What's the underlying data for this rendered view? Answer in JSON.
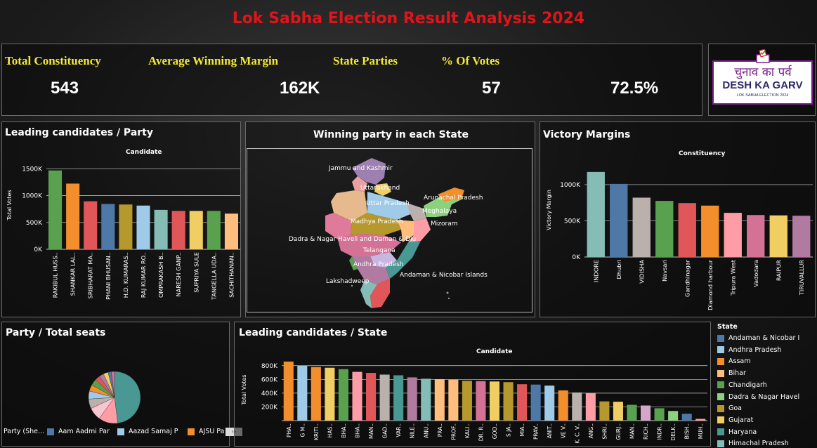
{
  "header": {
    "title": "Lok Sabha Election Result Analysis 2024"
  },
  "kpis": [
    {
      "label": "Total Constituency",
      "value": "543"
    },
    {
      "label": "Average Winning Margin",
      "value": "162K"
    },
    {
      "label": "State Parties",
      "value": "57"
    },
    {
      "label": "% Of Votes",
      "value": "72.5%"
    }
  ],
  "logo": {
    "hindi": "चुनाव का पर्व",
    "main": "DESH KA GARV",
    "sub": "LOK SABHA ELECTION 2024",
    "color": "#7a1e8c"
  },
  "panels": {
    "leading_party": {
      "title": "Leading candidates / Party",
      "subtitle": "Candidate"
    },
    "map": {
      "title": "Winning party in each State"
    },
    "victory": {
      "title": "Victory Margins",
      "subtitle": "Constituency"
    },
    "party_seats": {
      "title": "Party / Total seats"
    },
    "leading_state": {
      "title": "Leading candidates / State",
      "subtitle": "Candidate"
    }
  },
  "map_labels": [
    "Jammu and Kashmir",
    "Uttarakhand",
    "Uttar Pradesh",
    "Arunachal Pradesh",
    "Meghalaya",
    "Madhya Pradesh",
    "Mizoram",
    "Dadra & Nagar Haveli and Daman & Diu",
    "Telangana",
    "Andhra Pradesh",
    "Andaman & Nicobar Islands",
    "Lakshadweep"
  ],
  "pie_legend": {
    "label": "Party (She...",
    "items": [
      {
        "name": "Aam Aadmi Par",
        "color": "#4e79a7"
      },
      {
        "name": "Aazad Samaj P",
        "color": "#a0cbe8"
      },
      {
        "name": "AJSU Pa",
        "color": "#f28e2b"
      }
    ]
  },
  "state_legend": {
    "title": "State",
    "items": [
      {
        "name": "Andaman & Nicobar I",
        "color": "#4e79a7"
      },
      {
        "name": "Andhra Pradesh",
        "color": "#a0cbe8"
      },
      {
        "name": "Assam",
        "color": "#f28e2b"
      },
      {
        "name": "Bihar",
        "color": "#ffbe7d"
      },
      {
        "name": "Chandigarh",
        "color": "#59a14f"
      },
      {
        "name": "Dadra & Nagar Havel",
        "color": "#8cd17d"
      },
      {
        "name": "Goa",
        "color": "#b6992d"
      },
      {
        "name": "Gujarat",
        "color": "#f1ce63"
      },
      {
        "name": "Haryana",
        "color": "#499894"
      },
      {
        "name": "Himachal Pradesh",
        "color": "#86bcb6"
      }
    ]
  },
  "chart_data": [
    {
      "type": "bar",
      "title": "Candidate",
      "ylabel": "Total Votes",
      "ylim": [
        0,
        1650000
      ],
      "yticks": [
        0,
        500000,
        1000000,
        1500000
      ],
      "ytick_labels": [
        "0K",
        "500K",
        "1000K",
        "1500K"
      ],
      "categories": [
        "RAKIBUL HUSS..",
        "SHANKAR LAL..",
        "SRIBHARAT MA..",
        "PHANI BHUSAN..",
        "H.D. KUMARAS..",
        "RAJ KUMAR RO..",
        "OMPRAKASH B..",
        "NARESH GANP..",
        "SUPRIYA SULE",
        "TANGELLA UDA..",
        "SACHITHANAN.."
      ],
      "values": [
        1470000,
        1225000,
        895000,
        845000,
        835000,
        815000,
        735000,
        715000,
        715000,
        715000,
        665000
      ],
      "colors": [
        "#59a14f",
        "#f28e2b",
        "#e15759",
        "#4e79a7",
        "#b6992d",
        "#a0cbe8",
        "#86bcb6",
        "#e15759",
        "#f1ce63",
        "#59a14f",
        "#ffbe7d"
      ]
    },
    {
      "type": "bar",
      "title": "Constituency",
      "ylabel": "Victory Margin",
      "ylim": [
        0,
        1300000
      ],
      "yticks": [
        0,
        500000,
        1000000
      ],
      "ytick_labels": [
        "0K",
        "500K",
        "1000K"
      ],
      "categories": [
        "INDORE",
        "Dhubri",
        "VIDISHA",
        "Navsari",
        "Gandhinagar",
        "Diamond harbour",
        "Tripura West",
        "Vadodara",
        "RAIPUR",
        "TIRUVALLUR"
      ],
      "values": [
        1175000,
        1010000,
        820000,
        775000,
        745000,
        710000,
        610000,
        580000,
        575000,
        570000
      ],
      "colors": [
        "#86bcb6",
        "#4e79a7",
        "#bab0ac",
        "#59a14f",
        "#e15759",
        "#f28e2b",
        "#ff9da7",
        "#d37295",
        "#f1ce63",
        "#b07aa1"
      ]
    },
    {
      "type": "pie",
      "title": "Party / Total seats",
      "values": [
        48,
        12,
        8,
        6,
        5,
        4,
        4,
        3,
        3,
        3,
        2,
        2
      ],
      "colors": [
        "#499894",
        "#ff9da7",
        "#f9c5d1",
        "#bab0ac",
        "#a0cbe8",
        "#f28e2b",
        "#59a14f",
        "#e15759",
        "#b07aa1",
        "#f1ce63",
        "#4e79a7",
        "#d37295"
      ]
    },
    {
      "type": "bar",
      "title": "Candidate",
      "ylabel": "Total Votes",
      "ylim": [
        0,
        900000
      ],
      "yticks": [
        200000,
        400000,
        600000,
        800000
      ],
      "ytick_labels": [
        "200K",
        "400K",
        "600K",
        "800K"
      ],
      "categories": [
        "PHA..",
        "G M..",
        "KRITI..",
        "HAS..",
        "BHA..",
        "BHA..",
        "MAN..",
        "GAD..",
        "VAR..",
        "NILE..",
        "ANU..",
        "PRA..",
        "PROF..",
        "KALI..",
        "DR. R..",
        "GOD..",
        "S JA..",
        "MIA..",
        "PRAV..",
        "ANIT..",
        "VE V..",
        "K. C. V..",
        "ANG..",
        "SHRI..",
        "GURJ..",
        "MAN..",
        "RICH..",
        "INDR..",
        "DELK..",
        "BISH..",
        "MUH.."
      ],
      "values": [
        860000,
        800000,
        780000,
        770000,
        750000,
        710000,
        695000,
        670000,
        660000,
        630000,
        610000,
        600000,
        595000,
        580000,
        575000,
        570000,
        560000,
        530000,
        525000,
        510000,
        440000,
        410000,
        400000,
        280000,
        275000,
        230000,
        220000,
        180000,
        140000,
        100000,
        25000
      ],
      "colors": [
        "#f28e2b",
        "#a0cbe8",
        "#f28e2b",
        "#f1ce63",
        "#59a14f",
        "#ff9da7",
        "#e15759",
        "#bab0ac",
        "#499894",
        "#b07aa1",
        "#86bcb6",
        "#ffbe7d",
        "#ffbe7d",
        "#b6992d",
        "#d37295",
        "#f1ce63",
        "#b6992d",
        "#e15759",
        "#4e79a7",
        "#a0cbe8",
        "#f28e2b",
        "#bab0ac",
        "#ff9da7",
        "#b6992d",
        "#f1ce63",
        "#59a14f",
        "#d4a6c8",
        "#59a14f",
        "#8cd17d",
        "#4e79a7",
        "#ff9da7"
      ]
    }
  ]
}
